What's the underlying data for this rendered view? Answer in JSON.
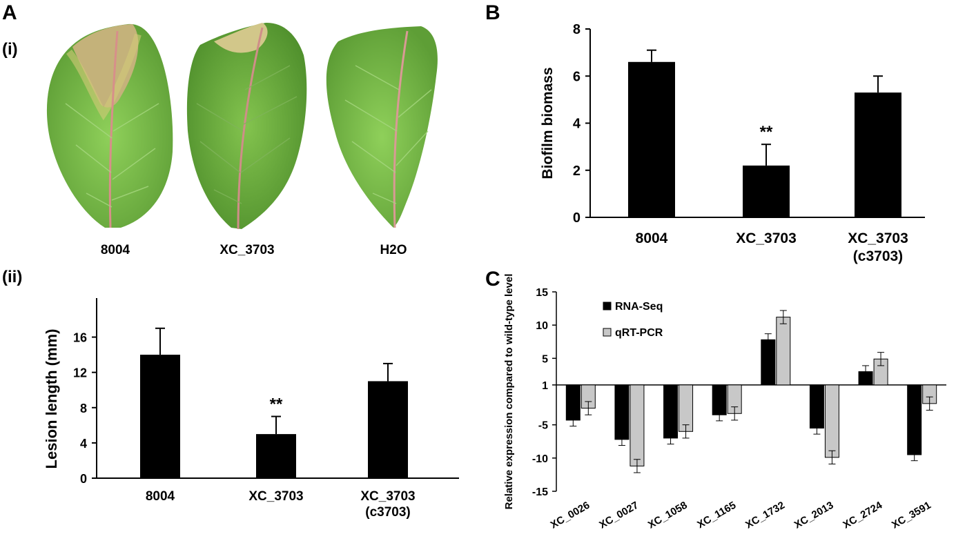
{
  "panel_labels": {
    "a": "A",
    "a_i": "(i)",
    "a_ii": "(ii)",
    "b": "B",
    "c": "C"
  },
  "leaves": {
    "labels": [
      "8004",
      "XC_3703",
      "H2O"
    ],
    "colors": {
      "leaf_green": "#7ec24a",
      "leaf_dark": "#5d9b33",
      "lesion": "#c9b770",
      "midrib": "#d98f8f"
    }
  },
  "chart_data": [
    {
      "id": "lesion",
      "type": "bar",
      "title": "",
      "xlabel": "",
      "ylabel": "Lesion length (mm)",
      "categories": [
        [
          "8004"
        ],
        [
          "XC_3703"
        ],
        [
          "XC_3703",
          "(c3703)"
        ]
      ],
      "values": [
        14,
        5,
        11
      ],
      "errors": [
        3,
        2,
        2
      ],
      "annotations": [
        "",
        "**",
        ""
      ],
      "ylim": [
        0,
        18
      ],
      "yticks": [
        0,
        4,
        8,
        12,
        16
      ],
      "bar_color": "#000000",
      "grid": false
    },
    {
      "id": "biofilm",
      "type": "bar",
      "title": "",
      "xlabel": "",
      "ylabel": "Biofilm biomass",
      "categories": [
        [
          "8004"
        ],
        [
          "XC_3703"
        ],
        [
          "XC_3703",
          "(c3703)"
        ]
      ],
      "values": [
        6.6,
        2.2,
        5.3
      ],
      "errors": [
        0.5,
        0.9,
        0.7
      ],
      "annotations": [
        "",
        "**",
        ""
      ],
      "ylim": [
        0,
        8
      ],
      "yticks": [
        0,
        2,
        4,
        6,
        8
      ],
      "bar_color": "#000000",
      "grid": false
    },
    {
      "id": "expression",
      "type": "bar",
      "title": "",
      "xlabel": "",
      "ylabel": "Relative expression compared to wild-type level",
      "categories": [
        "XC_0026",
        "XC_0027",
        "XC_1058",
        "XC_1165",
        "XC_1732",
        "XC_2013",
        "XC_2724",
        "XC_3591"
      ],
      "series": [
        {
          "name": "RNA-Seq",
          "color": "#000000",
          "values": [
            -4.3,
            -7.2,
            -7.0,
            -3.5,
            7.8,
            -5.5,
            3.0,
            -9.5
          ],
          "errors": [
            0.9,
            0.9,
            0.9,
            0.9,
            0.9,
            0.9,
            0.9,
            0.9
          ]
        },
        {
          "name": "qRT-PCR",
          "color": "#c8c8c8",
          "values": [
            -2.5,
            -11.2,
            -6.0,
            -3.3,
            11.2,
            -9.9,
            4.9,
            -1.8
          ],
          "errors": [
            1.0,
            1.0,
            1.0,
            1.0,
            1.0,
            1.0,
            1.0,
            1.0
          ]
        }
      ],
      "baseline": 1,
      "ylim": [
        -15,
        15
      ],
      "yticks": [
        -15,
        -10,
        -5,
        1,
        5,
        10,
        15
      ],
      "legend_position": "top-left",
      "grid": false
    }
  ]
}
